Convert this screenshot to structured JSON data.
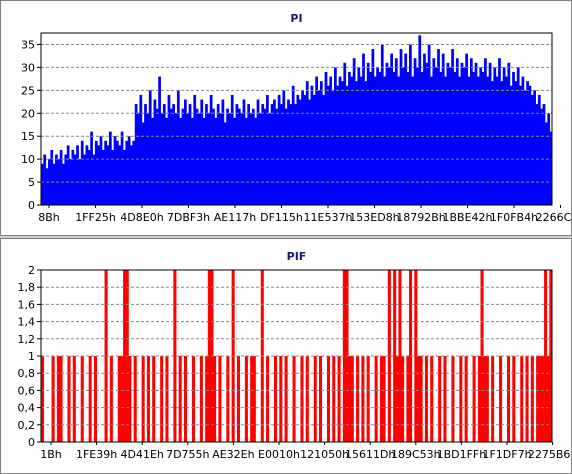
{
  "colors": {
    "pi_fill": "#0000ff",
    "pif_fill": "#ff0000",
    "title": "#1a1a6e",
    "grid": "#888888",
    "background": "#ffffff",
    "frame": "#d4d0c8"
  },
  "chart_data": [
    {
      "type": "bar",
      "title": "PI",
      "xlabel": "",
      "ylabel": "",
      "ylim": [
        0,
        37.5
      ],
      "yticks": [
        0,
        5,
        10,
        15,
        20,
        25,
        30,
        35
      ],
      "ytick_labels": [
        "0",
        "5",
        "10",
        "15",
        "20",
        "25",
        "30",
        "35"
      ],
      "xtick_labels": [
        "8Bh",
        "1FF25h",
        "4D8E0h",
        "7DBF3h",
        "AE117h",
        "DF115h",
        "11E537h",
        "153ED8h",
        "18792Bh",
        "1BBE42h",
        "1F0FB4h",
        "2266C0h"
      ],
      "grid": true,
      "series": [
        {
          "values": [
            9,
            11,
            8,
            10,
            12,
            9,
            11,
            10,
            12,
            9,
            11,
            13,
            10,
            12,
            11,
            13,
            10,
            14,
            11,
            13,
            12,
            16,
            11,
            14,
            13,
            15,
            12,
            14,
            13,
            16,
            12,
            15,
            14,
            13,
            16,
            12,
            14,
            15,
            13,
            14,
            22,
            20,
            24,
            18,
            22,
            20,
            25,
            19,
            23,
            21,
            28,
            20,
            22,
            19,
            24,
            21,
            22,
            20,
            25,
            19,
            21,
            23,
            20,
            22,
            19,
            24,
            21,
            20,
            23,
            19,
            22,
            20,
            24,
            21,
            19,
            22,
            20,
            23,
            18,
            21,
            20,
            24,
            19,
            22,
            21,
            20,
            23,
            19,
            22,
            20,
            21,
            19,
            23,
            20,
            22,
            21,
            24,
            20,
            22,
            23,
            21,
            24,
            22,
            25,
            21,
            23,
            22,
            26,
            22,
            24,
            23,
            25,
            24,
            27,
            23,
            26,
            24,
            28,
            25,
            27,
            24,
            29,
            26,
            28,
            25,
            30,
            26,
            28,
            27,
            31,
            26,
            29,
            28,
            32,
            27,
            30,
            28,
            33,
            27,
            31,
            29,
            34,
            28,
            30,
            29,
            35,
            28,
            31,
            30,
            33,
            29,
            32,
            28,
            34,
            30,
            33,
            29,
            35,
            28,
            32,
            30,
            37,
            29,
            33,
            31,
            35,
            28,
            32,
            30,
            34,
            29,
            33,
            28,
            31,
            30,
            34,
            29,
            32,
            28,
            31,
            30,
            33,
            28,
            32,
            29,
            31,
            28,
            30,
            29,
            32,
            28,
            31,
            27,
            30,
            28,
            32,
            27,
            30,
            28,
            31,
            26,
            29,
            27,
            30,
            26,
            28,
            25,
            27,
            26,
            24,
            25,
            22,
            24,
            21,
            22,
            18,
            20,
            16
          ]
        }
      ]
    },
    {
      "type": "bar",
      "title": "PIF",
      "xlabel": "",
      "ylabel": "",
      "ylim": [
        0,
        2
      ],
      "yticks": [
        0,
        0.2,
        0.4,
        0.6,
        0.8,
        1,
        1.2,
        1.4,
        1.6,
        1.8,
        2
      ],
      "ytick_labels": [
        "0",
        "0,2",
        "0,4",
        "0,6",
        "0,8",
        "1",
        "1,2",
        "1,4",
        "1,6",
        "1,8",
        "2"
      ],
      "xtick_labels": [
        "1Bh",
        "1FE39h",
        "4D41Eh",
        "7D755h",
        "AE32Eh",
        "E0010h",
        "121050h",
        "15611Dh",
        "189C53h",
        "1BD1FFh",
        "1F1DF7h",
        "2275B6h"
      ],
      "grid": true,
      "series": [
        {
          "values": [
            1,
            0,
            0,
            0,
            1,
            0,
            1,
            1,
            0,
            0,
            1,
            0,
            1,
            0,
            0,
            1,
            0,
            0,
            1,
            0,
            1,
            0,
            0,
            0,
            2,
            0,
            1,
            0,
            0,
            1,
            1,
            2,
            2,
            1,
            0,
            1,
            0,
            0,
            1,
            0,
            1,
            0,
            1,
            0,
            0,
            1,
            0,
            1,
            0,
            0,
            2,
            0,
            1,
            0,
            1,
            0,
            0,
            1,
            0,
            0,
            1,
            0,
            1,
            2,
            2,
            1,
            0,
            1,
            0,
            0,
            1,
            0,
            2,
            0,
            1,
            0,
            0,
            1,
            0,
            1,
            1,
            0,
            0,
            2,
            0,
            1,
            0,
            0,
            1,
            0,
            1,
            0,
            1,
            0,
            0,
            1,
            0,
            0,
            1,
            0,
            1,
            0,
            0,
            1,
            0,
            1,
            0,
            0,
            1,
            0,
            1,
            0,
            1,
            0,
            2,
            2,
            1,
            1,
            0,
            1,
            0,
            1,
            0,
            1,
            0,
            0,
            1,
            0,
            1,
            1,
            0,
            2,
            0,
            2,
            1,
            2,
            1,
            0,
            1,
            2,
            0,
            2,
            1,
            1,
            0,
            1,
            0,
            1,
            0,
            0,
            1,
            0,
            1,
            0,
            0,
            1,
            0,
            0,
            1,
            0,
            1,
            0,
            0,
            1,
            0,
            1,
            2,
            1,
            1,
            0,
            1,
            0,
            0,
            1,
            0,
            0,
            1,
            0,
            1,
            0,
            0,
            1,
            0,
            1,
            0,
            1,
            0,
            1,
            1,
            1,
            2,
            1,
            2
          ]
        }
      ]
    }
  ]
}
